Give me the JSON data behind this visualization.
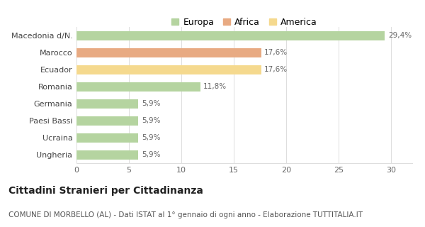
{
  "categories": [
    "Ungheria",
    "Ucraina",
    "Paesi Bassi",
    "Germania",
    "Romania",
    "Ecuador",
    "Marocco",
    "Macedonia d/N."
  ],
  "values": [
    5.9,
    5.9,
    5.9,
    5.9,
    11.8,
    17.6,
    17.6,
    29.4
  ],
  "labels": [
    "5,9%",
    "5,9%",
    "5,9%",
    "5,9%",
    "11,8%",
    "17,6%",
    "17,6%",
    "29,4%"
  ],
  "colors": [
    "#b5d4a0",
    "#b5d4a0",
    "#b5d4a0",
    "#b5d4a0",
    "#b5d4a0",
    "#f5d98e",
    "#e8aa82",
    "#b5d4a0"
  ],
  "legend": [
    {
      "label": "Europa",
      "color": "#b5d4a0"
    },
    {
      "label": "Africa",
      "color": "#e8aa82"
    },
    {
      "label": "America",
      "color": "#f5d98e"
    }
  ],
  "xlim": [
    0,
    32
  ],
  "xticks": [
    0,
    5,
    10,
    15,
    20,
    25,
    30
  ],
  "title": "Cittadini Stranieri per Cittadinanza",
  "subtitle": "COMUNE DI MORBELLO (AL) - Dati ISTAT al 1° gennaio di ogni anno - Elaborazione TUTTITALIA.IT",
  "background_color": "#ffffff",
  "bar_height": 0.55,
  "label_fontsize": 7.5,
  "title_fontsize": 10,
  "subtitle_fontsize": 7.5,
  "ytick_fontsize": 8,
  "xtick_fontsize": 8
}
